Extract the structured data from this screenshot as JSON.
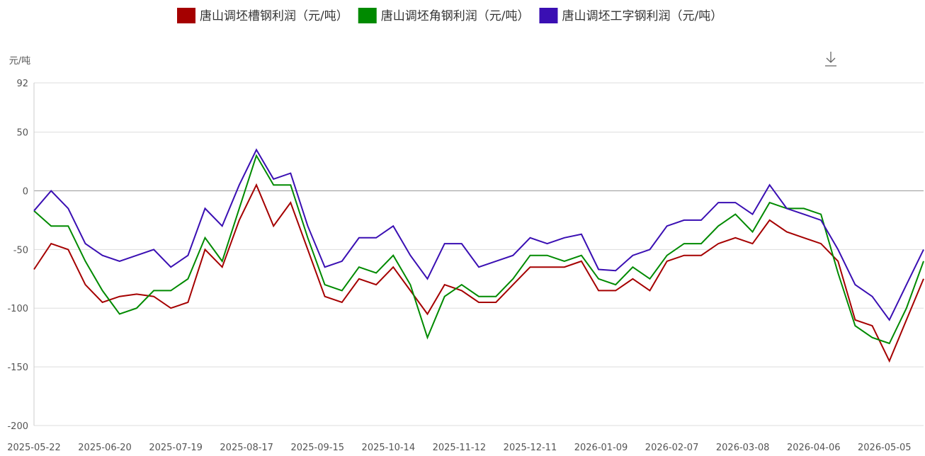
{
  "chart_data": {
    "type": "line",
    "y_unit": "元/吨",
    "x": [
      "2025-05-22",
      "2025-05-29",
      "2025-06-05",
      "2025-06-12",
      "2025-06-19",
      "2025-06-26",
      "2025-07-03",
      "2025-07-10",
      "2025-07-17",
      "2025-07-24",
      "2025-07-31",
      "2025-08-07",
      "2025-08-14",
      "2025-08-21",
      "2025-08-28",
      "2025-09-04",
      "2025-09-11",
      "2025-09-18",
      "2025-09-25",
      "2025-10-02",
      "2025-10-09",
      "2025-10-16",
      "2025-10-23",
      "2025-10-30",
      "2025-11-06",
      "2025-11-13",
      "2025-11-20",
      "2025-11-27",
      "2025-12-04",
      "2025-12-11",
      "2025-12-18",
      "2025-12-25",
      "2026-01-01",
      "2026-01-08",
      "2026-01-15",
      "2026-01-22",
      "2026-01-29",
      "2026-02-05",
      "2026-02-12",
      "2026-02-19",
      "2026-02-26",
      "2026-03-05",
      "2026-03-12",
      "2026-03-19",
      "2026-03-26",
      "2026-04-02",
      "2026-04-09",
      "2026-04-16",
      "2026-04-23",
      "2026-04-30",
      "2026-05-07",
      "2026-05-14",
      "2026-05-21"
    ],
    "xlim": [
      "2025-05-22",
      "2026-05-21"
    ],
    "xticks": [
      "2025-05-22",
      "2025-06-20",
      "2025-07-19",
      "2025-08-17",
      "2025-09-15",
      "2025-10-14",
      "2025-11-12",
      "2025-12-11",
      "2026-01-09",
      "2026-02-07",
      "2026-03-08",
      "2026-04-06",
      "2026-05-05"
    ],
    "ylim": [
      -200,
      92
    ],
    "yticks": [
      92,
      50,
      0,
      -50,
      -100,
      -150,
      -200
    ],
    "grid": true,
    "legend": "top",
    "series": [
      {
        "name": "唐山调坯槽钢利润（元/吨）",
        "color": "#a50000",
        "values": [
          -67,
          -45,
          -50,
          -80,
          -95,
          -90,
          -88,
          -90,
          -100,
          -95,
          -50,
          -65,
          -25,
          5,
          -30,
          -10,
          -50,
          -90,
          -95,
          -75,
          -80,
          -65,
          -85,
          -105,
          -80,
          -85,
          -95,
          -95,
          -80,
          -65,
          -65,
          -65,
          -60,
          -85,
          -85,
          -75,
          -85,
          -60,
          -55,
          -55,
          -45,
          -40,
          -45,
          -25,
          -35,
          -40,
          -45,
          -60,
          -110,
          -115,
          -145,
          -110,
          -75
        ]
      },
      {
        "name": "唐山调坯角钢利润（元/吨）",
        "color": "#008a00",
        "values": [
          -17,
          -30,
          -30,
          -60,
          -85,
          -105,
          -100,
          -85,
          -85,
          -75,
          -40,
          -60,
          -15,
          30,
          5,
          5,
          -40,
          -80,
          -85,
          -65,
          -70,
          -55,
          -80,
          -125,
          -90,
          -80,
          -90,
          -90,
          -75,
          -55,
          -55,
          -60,
          -55,
          -75,
          -80,
          -65,
          -75,
          -55,
          -45,
          -45,
          -30,
          -20,
          -35,
          -10,
          -15,
          -15,
          -20,
          -70,
          -115,
          -125,
          -130,
          -100,
          -60
        ]
      },
      {
        "name": "唐山调坯工字钢利润（元/吨）",
        "color": "#3a0fb3",
        "values": [
          -17,
          0,
          -15,
          -45,
          -55,
          -60,
          -55,
          -50,
          -65,
          -55,
          -15,
          -30,
          5,
          35,
          10,
          15,
          -30,
          -65,
          -60,
          -40,
          -40,
          -30,
          -55,
          -75,
          -45,
          -45,
          -65,
          -60,
          -55,
          -40,
          -45,
          -40,
          -37,
          -67,
          -68,
          -55,
          -50,
          -30,
          -25,
          -25,
          -10,
          -10,
          -20,
          5,
          -15,
          -20,
          -25,
          -50,
          -80,
          -90,
          -110,
          -80,
          -50
        ]
      }
    ]
  }
}
